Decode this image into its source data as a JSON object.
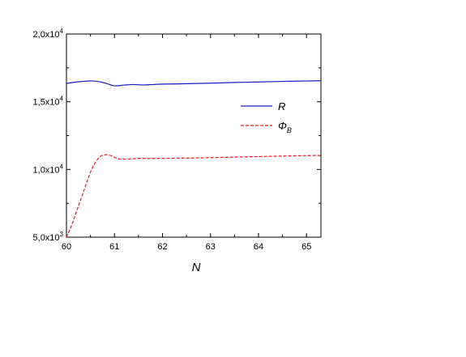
{
  "chart_data": {
    "type": "line",
    "xlabel": "N",
    "ylabel": "",
    "xlim": [
      60,
      65.3
    ],
    "ylim": [
      5000,
      20000
    ],
    "xticks": [
      60,
      61,
      62,
      63,
      64,
      65
    ],
    "xtick_labels": [
      "60",
      "61",
      "62",
      "63",
      "64",
      "65"
    ],
    "yticks": [
      5000,
      10000,
      15000,
      20000
    ],
    "ytick_labels": [
      {
        "mantissa": "5,0x10",
        "exp": "3"
      },
      {
        "mantissa": "1,0x10",
        "exp": "4"
      },
      {
        "mantissa": "1,5x10",
        "exp": "4"
      },
      {
        "mantissa": "2,0x10",
        "exp": "4"
      }
    ],
    "grid": false,
    "legend_position": "right",
    "series": [
      {
        "name": "R",
        "color": "#1a1ac8",
        "dash": "solid",
        "x": [
          60,
          60.2,
          60.4,
          60.55,
          60.7,
          60.85,
          61.0,
          61.2,
          61.4,
          61.6,
          61.8,
          62.0,
          62.5,
          63.0,
          63.5,
          64.0,
          64.5,
          65.0,
          65.3
        ],
        "y": [
          16350,
          16450,
          16520,
          16530,
          16470,
          16330,
          16180,
          16230,
          16270,
          16240,
          16270,
          16300,
          16330,
          16370,
          16420,
          16460,
          16500,
          16530,
          16550
        ]
      },
      {
        "name": "Φ_B",
        "name_main": "Φ",
        "name_sub": "B",
        "color": "#e8141e",
        "dash": "dashed",
        "x": [
          60,
          60.1,
          60.2,
          60.3,
          60.4,
          60.5,
          60.6,
          60.7,
          60.8,
          60.9,
          61.0,
          61.1,
          61.2,
          61.35,
          61.5,
          61.7,
          62.0,
          62.5,
          63.0,
          63.5,
          64.0,
          64.5,
          65.0,
          65.3
        ],
        "y": [
          5000,
          5800,
          6800,
          7800,
          8800,
          9800,
          10500,
          10950,
          11080,
          11050,
          10900,
          10780,
          10760,
          10780,
          10820,
          10810,
          10820,
          10840,
          10870,
          10910,
          10950,
          10990,
          11020,
          11030
        ]
      }
    ]
  }
}
